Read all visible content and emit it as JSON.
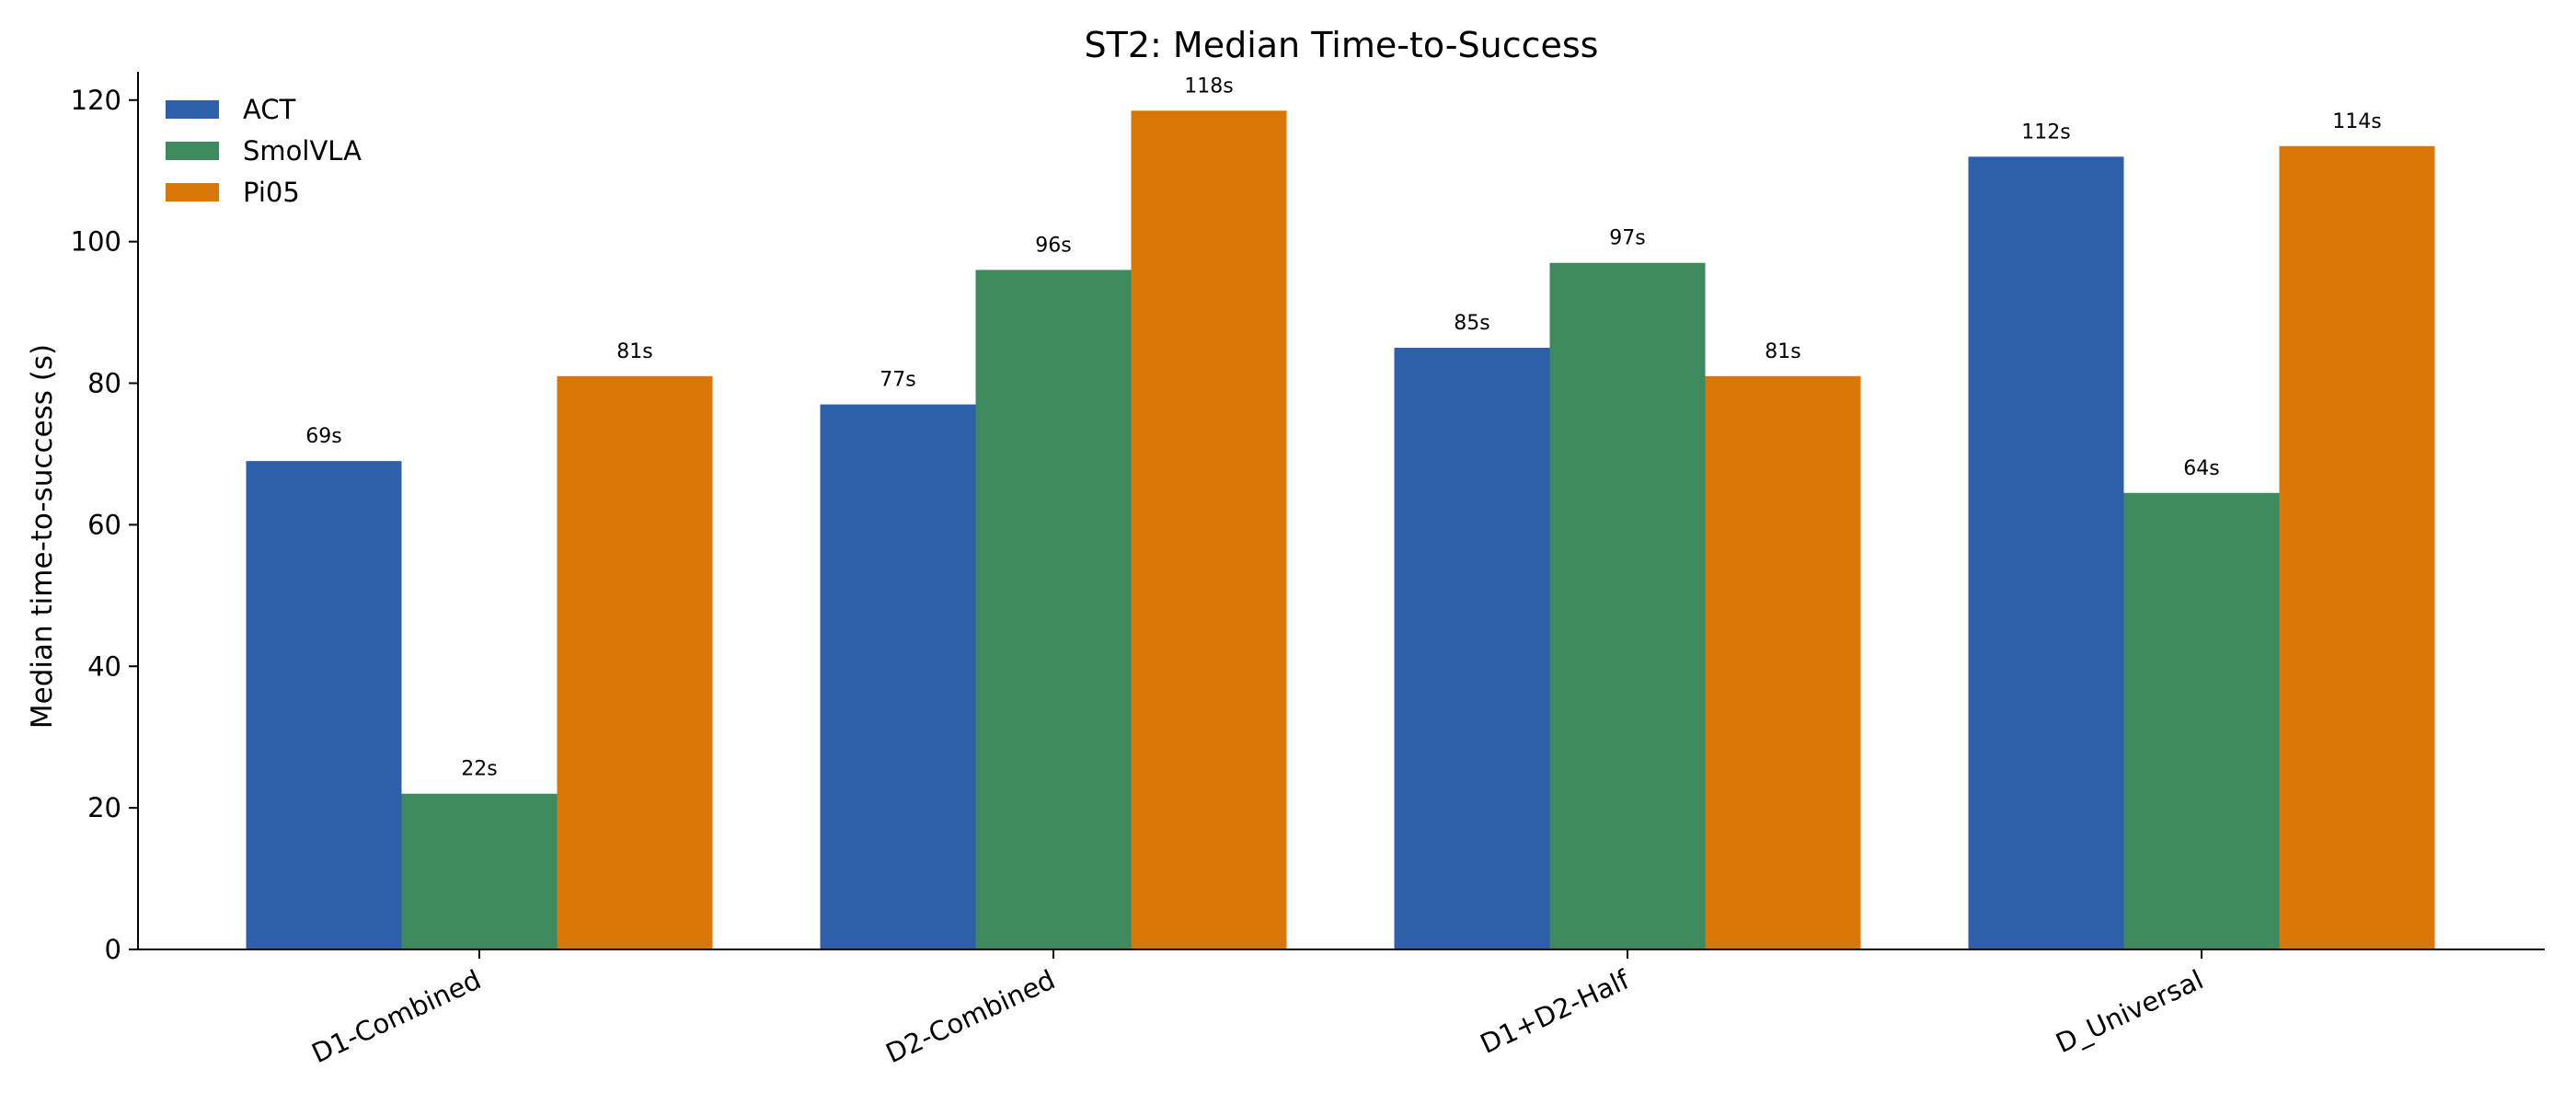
{
  "chart_data": {
    "type": "bar",
    "title": "ST2: Median Time-to-Success",
    "xlabel": "",
    "ylabel": "Median time-to-success (s)",
    "ylim": [
      0,
      124
    ],
    "yticks": [
      0,
      20,
      40,
      60,
      80,
      100,
      120
    ],
    "categories": [
      "D1-Combined",
      "D2-Combined",
      "D1+D2-Half",
      "D_Universal"
    ],
    "series": [
      {
        "name": "ACT",
        "color": "#2e5faa",
        "values": [
          69,
          77,
          85,
          112
        ],
        "labels": [
          "69s",
          "77s",
          "85s",
          "112s"
        ]
      },
      {
        "name": "SmolVLA",
        "color": "#3d8a5c",
        "values": [
          22,
          96,
          97,
          64.5
        ],
        "labels": [
          "22s",
          "96s",
          "97s",
          "64s"
        ]
      },
      {
        "name": "Pi05",
        "color": "#d97706",
        "values": [
          81,
          118.5,
          81,
          113.5
        ],
        "labels": [
          "81s",
          "118s",
          "81s",
          "114s"
        ]
      }
    ],
    "legend": "top-left",
    "grid": false
  }
}
